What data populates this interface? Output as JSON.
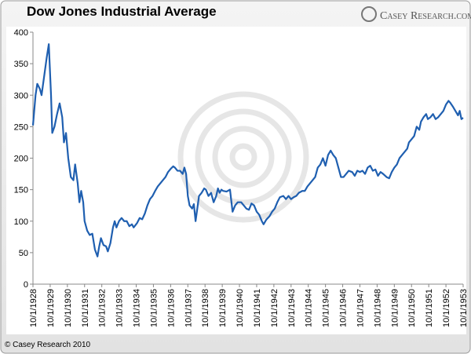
{
  "chart_data": {
    "type": "line",
    "title": "Dow Jones Industrial Average",
    "brand": "Casey Research.com",
    "footer": "© Casey Research 2010",
    "grid": false,
    "xlim": [
      1928.75,
      1953.75
    ],
    "xticks": [
      {
        "value": 1928.75,
        "label": "10/1/1928"
      },
      {
        "value": 1929.75,
        "label": "10/1/1929"
      },
      {
        "value": 1930.75,
        "label": "10/1/1930"
      },
      {
        "value": 1931.75,
        "label": "10/1/1931"
      },
      {
        "value": 1932.75,
        "label": "10/1/1932"
      },
      {
        "value": 1933.75,
        "label": "10/1/1933"
      },
      {
        "value": 1934.75,
        "label": "10/1/1934"
      },
      {
        "value": 1935.75,
        "label": "10/1/1935"
      },
      {
        "value": 1936.75,
        "label": "10/1/1936"
      },
      {
        "value": 1937.75,
        "label": "10/1/1937"
      },
      {
        "value": 1938.75,
        "label": "10/1/1938"
      },
      {
        "value": 1939.75,
        "label": "10/1/1939"
      },
      {
        "value": 1940.75,
        "label": "10/1/1940"
      },
      {
        "value": 1941.75,
        "label": "10/1/1941"
      },
      {
        "value": 1942.75,
        "label": "10/1/1942"
      },
      {
        "value": 1943.75,
        "label": "10/1/1943"
      },
      {
        "value": 1944.75,
        "label": "10/1/1944"
      },
      {
        "value": 1945.75,
        "label": "10/1/1945"
      },
      {
        "value": 1946.75,
        "label": "10/1/1946"
      },
      {
        "value": 1947.75,
        "label": "10/1/1947"
      },
      {
        "value": 1948.75,
        "label": "10/1/1948"
      },
      {
        "value": 1949.75,
        "label": "10/1/1949"
      },
      {
        "value": 1950.75,
        "label": "10/1/1950"
      },
      {
        "value": 1951.75,
        "label": "10/1/1951"
      },
      {
        "value": 1952.75,
        "label": "10/1/1952"
      },
      {
        "value": 1953.75,
        "label": "10/1/1953"
      }
    ],
    "ylim": [
      0,
      400
    ],
    "yticks": [
      0,
      50,
      100,
      150,
      200,
      250,
      300,
      350,
      400
    ],
    "x": [
      1928.75,
      1928.9,
      1929.0,
      1929.15,
      1929.25,
      1929.4,
      1929.55,
      1929.67,
      1929.8,
      1929.87,
      1930.0,
      1930.15,
      1930.3,
      1930.45,
      1930.55,
      1930.67,
      1930.8,
      1930.95,
      1931.1,
      1931.2,
      1931.35,
      1931.45,
      1931.55,
      1931.67,
      1931.75,
      1931.9,
      1932.05,
      1932.2,
      1932.35,
      1932.5,
      1932.6,
      1932.7,
      1932.85,
      1933.0,
      1933.1,
      1933.25,
      1933.4,
      1933.5,
      1933.6,
      1933.75,
      1933.9,
      1934.05,
      1934.2,
      1934.35,
      1934.5,
      1934.6,
      1934.8,
      1934.95,
      1935.1,
      1935.25,
      1935.4,
      1935.55,
      1935.7,
      1935.85,
      1936.0,
      1936.15,
      1936.3,
      1936.45,
      1936.6,
      1936.75,
      1936.9,
      1937.0,
      1937.15,
      1937.3,
      1937.45,
      1937.55,
      1937.65,
      1937.75,
      1937.85,
      1938.0,
      1938.1,
      1938.2,
      1938.3,
      1938.4,
      1938.55,
      1938.7,
      1938.8,
      1938.95,
      1939.1,
      1939.25,
      1939.4,
      1939.5,
      1939.6,
      1939.7,
      1939.8,
      1940.0,
      1940.2,
      1940.35,
      1940.5,
      1940.65,
      1940.85,
      1941.0,
      1941.15,
      1941.3,
      1941.45,
      1941.6,
      1941.75,
      1941.9,
      1942.05,
      1942.15,
      1942.3,
      1942.5,
      1942.65,
      1942.8,
      1942.95,
      1943.1,
      1943.3,
      1943.45,
      1943.6,
      1943.75,
      1943.9,
      1944.05,
      1944.2,
      1944.4,
      1944.55,
      1944.7,
      1944.85,
      1945.0,
      1945.15,
      1945.3,
      1945.45,
      1945.6,
      1945.75,
      1945.9,
      1946.05,
      1946.2,
      1946.35,
      1946.5,
      1946.65,
      1946.8,
      1946.95,
      1947.1,
      1947.3,
      1947.45,
      1947.6,
      1947.75,
      1947.9,
      1948.05,
      1948.2,
      1948.35,
      1948.5,
      1948.65,
      1948.8,
      1948.95,
      1949.1,
      1949.3,
      1949.45,
      1949.6,
      1949.75,
      1949.9,
      1950.05,
      1950.2,
      1950.35,
      1950.5,
      1950.6,
      1950.75,
      1950.9,
      1951.05,
      1951.2,
      1951.3,
      1951.45,
      1951.6,
      1951.7,
      1951.85,
      1952.0,
      1952.15,
      1952.3,
      1952.45,
      1952.6,
      1952.75,
      1952.9,
      1953.0,
      1953.15,
      1953.3,
      1953.45,
      1953.55,
      1953.65,
      1953.75
    ],
    "series": [
      {
        "color": "#1f5fb0",
        "values": [
          252,
          300,
          318,
          310,
          300,
          330,
          360,
          381,
          300,
          240,
          250,
          270,
          287,
          265,
          225,
          240,
          200,
          170,
          165,
          190,
          160,
          130,
          148,
          130,
          100,
          85,
          78,
          80,
          55,
          44,
          60,
          73,
          62,
          60,
          52,
          65,
          90,
          100,
          90,
          100,
          105,
          100,
          100,
          92,
          95,
          90,
          97,
          105,
          103,
          112,
          125,
          135,
          140,
          148,
          155,
          160,
          165,
          170,
          178,
          183,
          187,
          185,
          180,
          180,
          175,
          185,
          175,
          140,
          125,
          120,
          127,
          100,
          120,
          140,
          145,
          152,
          150,
          140,
          145,
          130,
          140,
          152,
          145,
          150,
          148,
          147,
          150,
          115,
          125,
          130,
          130,
          125,
          120,
          118,
          128,
          125,
          115,
          110,
          100,
          95,
          102,
          108,
          115,
          120,
          130,
          138,
          140,
          135,
          140,
          135,
          138,
          140,
          145,
          148,
          148,
          155,
          160,
          165,
          170,
          185,
          190,
          200,
          188,
          205,
          212,
          205,
          200,
          185,
          170,
          170,
          175,
          180,
          178,
          172,
          180,
          178,
          180,
          175,
          185,
          188,
          180,
          182,
          172,
          178,
          175,
          170,
          168,
          178,
          185,
          190,
          200,
          205,
          210,
          215,
          225,
          230,
          235,
          250,
          245,
          258,
          265,
          270,
          262,
          265,
          270,
          262,
          265,
          270,
          275,
          285,
          291,
          288,
          282,
          275,
          268,
          275,
          262,
          264
        ]
      }
    ]
  }
}
